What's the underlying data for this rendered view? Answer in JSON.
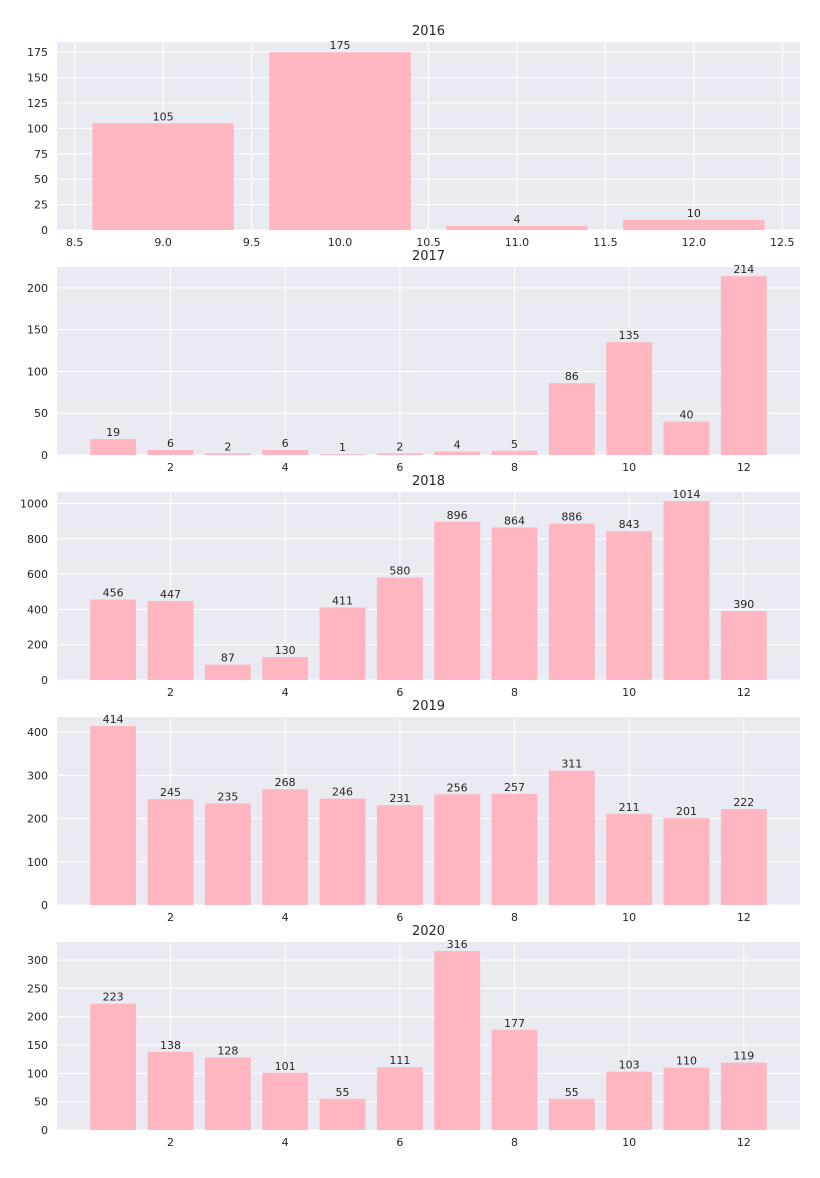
{
  "chart_data": [
    {
      "type": "bar",
      "title": "2016",
      "x": [
        9,
        10,
        11,
        12
      ],
      "values": [
        105,
        175,
        4,
        10
      ],
      "data_labels": [
        "105",
        "175",
        "4",
        "10"
      ],
      "xlim": [
        8.4,
        12.6
      ],
      "ylim": [
        0,
        185
      ],
      "xticks": [
        8.5,
        9.0,
        9.5,
        10.0,
        10.5,
        11.0,
        11.5,
        12.0,
        12.5
      ],
      "xtick_labels": [
        "8.5",
        "9.0",
        "9.5",
        "10.0",
        "10.5",
        "11.0",
        "11.5",
        "12.0",
        "12.5"
      ],
      "yticks": [
        0,
        25,
        50,
        75,
        100,
        125,
        150,
        175
      ],
      "ytick_labels": [
        "0",
        "25",
        "50",
        "75",
        "100",
        "125",
        "150",
        "175"
      ],
      "grid": true,
      "bar_color": "#ffb6c1"
    },
    {
      "type": "bar",
      "title": "2017",
      "x": [
        1,
        2,
        3,
        4,
        5,
        6,
        7,
        8,
        9,
        10,
        11,
        12
      ],
      "values": [
        19,
        6,
        2,
        6,
        1,
        2,
        4,
        5,
        86,
        135,
        40,
        214
      ],
      "data_labels": [
        "19",
        "6",
        "2",
        "6",
        "1",
        "2",
        "4",
        "5",
        "86",
        "135",
        "40",
        "214"
      ],
      "xlim": [
        0.02,
        12.98
      ],
      "ylim": [
        0,
        225
      ],
      "xticks": [
        2,
        4,
        6,
        8,
        10,
        12
      ],
      "xtick_labels": [
        "2",
        "4",
        "6",
        "8",
        "10",
        "12"
      ],
      "yticks": [
        0,
        50,
        100,
        150,
        200
      ],
      "ytick_labels": [
        "0",
        "50",
        "100",
        "150",
        "200"
      ],
      "grid": true,
      "bar_color": "#ffb6c1"
    },
    {
      "type": "bar",
      "title": "2018",
      "x": [
        1,
        2,
        3,
        4,
        5,
        6,
        7,
        8,
        9,
        10,
        11,
        12
      ],
      "values": [
        456,
        447,
        87,
        130,
        411,
        580,
        896,
        864,
        886,
        843,
        1014,
        390
      ],
      "data_labels": [
        "456",
        "447",
        "87",
        "130",
        "411",
        "580",
        "896",
        "864",
        "886",
        "843",
        "1014",
        "390"
      ],
      "xlim": [
        0.02,
        12.98
      ],
      "ylim": [
        0,
        1065
      ],
      "xticks": [
        2,
        4,
        6,
        8,
        10,
        12
      ],
      "xtick_labels": [
        "2",
        "4",
        "6",
        "8",
        "10",
        "12"
      ],
      "yticks": [
        0,
        200,
        400,
        600,
        800,
        1000
      ],
      "ytick_labels": [
        "0",
        "200",
        "400",
        "600",
        "800",
        "1000"
      ],
      "grid": true,
      "bar_color": "#ffb6c1"
    },
    {
      "type": "bar",
      "title": "2019",
      "x": [
        1,
        2,
        3,
        4,
        5,
        6,
        7,
        8,
        9,
        10,
        11,
        12
      ],
      "values": [
        414,
        245,
        235,
        268,
        246,
        231,
        256,
        257,
        311,
        211,
        201,
        222
      ],
      "data_labels": [
        "414",
        "245",
        "235",
        "268",
        "246",
        "231",
        "256",
        "257",
        "311",
        "211",
        "201",
        "222"
      ],
      "xlim": [
        0.02,
        12.98
      ],
      "ylim": [
        0,
        435
      ],
      "xticks": [
        2,
        4,
        6,
        8,
        10,
        12
      ],
      "xtick_labels": [
        "2",
        "4",
        "6",
        "8",
        "10",
        "12"
      ],
      "yticks": [
        0,
        100,
        200,
        300,
        400
      ],
      "ytick_labels": [
        "0",
        "100",
        "200",
        "300",
        "400"
      ],
      "grid": true,
      "bar_color": "#ffb6c1"
    },
    {
      "type": "bar",
      "title": "2020",
      "x": [
        1,
        2,
        3,
        4,
        5,
        6,
        7,
        8,
        9,
        10,
        11,
        12
      ],
      "values": [
        223,
        138,
        128,
        101,
        55,
        111,
        316,
        177,
        55,
        103,
        110,
        119
      ],
      "data_labels": [
        "223",
        "138",
        "128",
        "101",
        "55",
        "111",
        "316",
        "177",
        "55",
        "103",
        "110",
        "119"
      ],
      "xlim": [
        0.02,
        12.98
      ],
      "ylim": [
        0,
        332
      ],
      "xticks": [
        2,
        4,
        6,
        8,
        10,
        12
      ],
      "xtick_labels": [
        "2",
        "4",
        "6",
        "8",
        "10",
        "12"
      ],
      "yticks": [
        0,
        50,
        100,
        150,
        200,
        250,
        300
      ],
      "ytick_labels": [
        "0",
        "50",
        "100",
        "150",
        "200",
        "250",
        "300"
      ],
      "grid": true,
      "bar_color": "#ffb6c1"
    }
  ]
}
